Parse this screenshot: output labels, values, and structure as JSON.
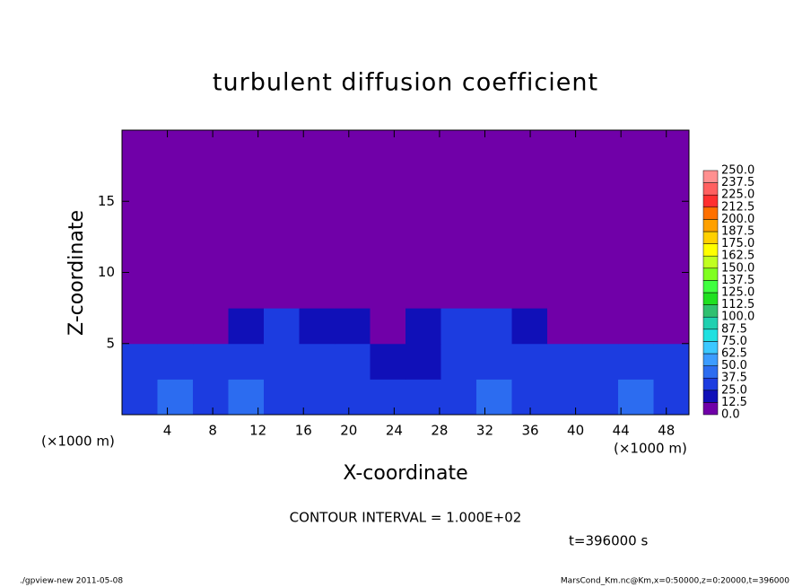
{
  "chart_data": {
    "type": "contour",
    "title": "turbulent diffusion coefficient",
    "x_label": "X-coordinate",
    "y_label": "Z-coordinate",
    "x_unit": "(×1000 m)",
    "y_unit": "(×1000 m)",
    "xlim": [
      0,
      50
    ],
    "ylim": [
      0,
      20
    ],
    "xticks": [
      4,
      8,
      12,
      16,
      20,
      24,
      28,
      32,
      36,
      40,
      44,
      48
    ],
    "yticks": [
      5,
      10,
      15
    ],
    "xbins": [
      0,
      3.125,
      6.25,
      9.375,
      12.5,
      15.625,
      18.75,
      21.875,
      25,
      28.125,
      31.25,
      34.375,
      37.5,
      40.625,
      43.75,
      46.875,
      50
    ],
    "ybins": [
      0,
      2.5,
      5,
      7.5,
      10,
      12.5,
      15,
      17.5,
      20
    ],
    "z": [
      [
        35,
        40,
        30,
        45,
        30,
        30,
        35,
        30,
        25,
        25,
        45,
        30,
        35,
        30,
        40,
        35
      ],
      [
        30,
        35,
        25,
        35,
        30,
        30,
        30,
        20,
        20,
        25,
        30,
        25,
        35,
        30,
        35,
        30
      ],
      [
        10,
        12,
        8,
        20,
        25,
        15,
        15,
        10,
        15,
        25,
        25,
        20,
        12,
        10,
        8,
        5
      ],
      [
        5,
        3,
        2,
        5,
        8,
        5,
        5,
        3,
        3,
        5,
        8,
        3,
        3,
        2,
        2,
        5
      ],
      [
        3,
        2,
        2,
        3,
        5,
        5,
        5,
        3,
        2,
        5,
        5,
        3,
        3,
        2,
        3,
        2
      ],
      [
        2,
        2,
        1,
        2,
        2,
        3,
        2,
        2,
        2,
        2,
        1,
        2,
        2,
        2,
        2,
        2
      ],
      [
        2,
        1,
        1,
        1,
        1,
        1,
        1,
        0,
        0,
        0,
        0,
        0,
        1,
        1,
        0,
        0
      ],
      [
        0,
        0,
        0,
        0,
        0,
        0,
        0,
        0,
        0,
        0,
        0,
        0,
        0,
        0,
        0,
        0
      ]
    ],
    "levels": [
      {
        "value": 0,
        "label": "0.0"
      },
      12.5,
      {
        "value": 25,
        "label": "25.0"
      },
      37.5,
      {
        "value": 50,
        "label": "50.0"
      },
      62.5,
      {
        "value": 75,
        "label": "75.0"
      },
      87.5,
      {
        "value": 100,
        "label": "100.0"
      },
      112.5,
      {
        "value": 125,
        "label": "125.0"
      },
      137.5,
      {
        "value": 150,
        "label": "150.0"
      },
      162.5,
      {
        "value": 175,
        "label": "175.0"
      },
      187.5,
      {
        "value": 200,
        "label": "200.0"
      },
      212.5,
      {
        "value": 225,
        "label": "225.0"
      },
      237.5,
      {
        "value": 250,
        "label": "250.0"
      }
    ],
    "colors": [
      "#7000a8",
      "#1010b8",
      "#1c3ce0",
      "#2c6cf0",
      "#3c9cff",
      "#3cc8ff",
      "#20e0e0",
      "#20d0b0",
      "#30c070",
      "#20e020",
      "#40ff40",
      "#80ff20",
      "#c0ff20",
      "#ffff00",
      "#ffd000",
      "#ffa000",
      "#ff7000",
      "#ff3030",
      "#ff6060",
      "#ff9090"
    ],
    "contour_interval": "CONTOUR INTERVAL = 1.000E+02",
    "time_label": "t=396000 s",
    "footer_left": "./gpview-new   2011-05-08",
    "footer_right": "MarsCond_Km.nc@Km,x=0:50000,z=0:20000,t=396000"
  }
}
